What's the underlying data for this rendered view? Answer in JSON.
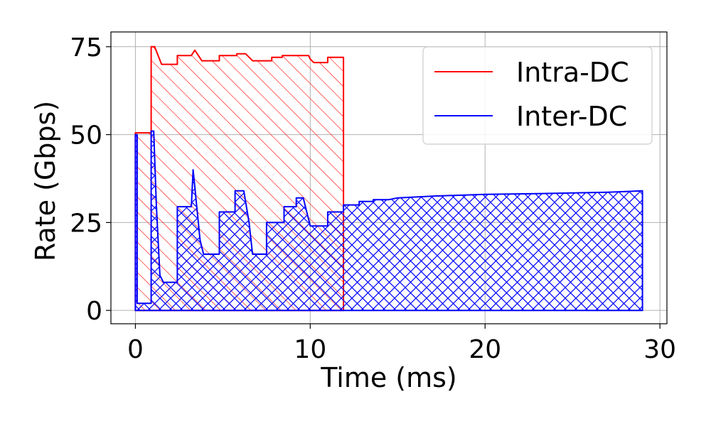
{
  "colors": {
    "intra": "#ff0000",
    "inter": "#0000ff",
    "grid": "#b0b0b0",
    "axis": "#000000"
  },
  "chart_data": {
    "type": "area",
    "xlabel": "Time (ms)",
    "ylabel": "Rate (Gbps)",
    "xlim": [
      -1.4,
      30.4
    ],
    "ylim": [
      -3.8,
      79.2
    ],
    "xticks": [
      0,
      10,
      20,
      30
    ],
    "yticks": [
      0,
      25,
      50,
      75
    ],
    "xtick_labels": [
      "0",
      "10",
      "20",
      "30"
    ],
    "ytick_labels": [
      "0",
      "25",
      "50",
      "75"
    ],
    "grid": true,
    "legend_position": "top-right",
    "series": [
      {
        "name": "Intra-DC",
        "color": "#ff0000",
        "hatch": "diagonal",
        "points": [
          [
            0.0,
            0
          ],
          [
            0.0,
            50.5
          ],
          [
            0.9,
            50.5
          ],
          [
            0.9,
            75
          ],
          [
            1.1,
            75
          ],
          [
            1.3,
            72.5
          ],
          [
            1.5,
            70
          ],
          [
            2.4,
            70
          ],
          [
            2.4,
            72.5
          ],
          [
            3.2,
            72.5
          ],
          [
            3.4,
            74
          ],
          [
            3.6,
            72.5
          ],
          [
            3.8,
            71
          ],
          [
            4.8,
            71
          ],
          [
            4.8,
            72.5
          ],
          [
            5.8,
            72.5
          ],
          [
            5.8,
            73
          ],
          [
            6.3,
            73
          ],
          [
            6.7,
            71
          ],
          [
            7.8,
            71
          ],
          [
            7.8,
            72
          ],
          [
            8.4,
            72
          ],
          [
            8.4,
            72.5
          ],
          [
            9.6,
            72.5
          ],
          [
            9.9,
            72.5
          ],
          [
            10.0,
            71.5
          ],
          [
            10.2,
            70.5
          ],
          [
            11.0,
            70.5
          ],
          [
            11.0,
            72
          ],
          [
            11.9,
            72
          ],
          [
            11.9,
            0
          ]
        ]
      },
      {
        "name": "Inter-DC",
        "color": "#0000ff",
        "hatch": "crosshatch",
        "points": [
          [
            0.0,
            0
          ],
          [
            0.0,
            50
          ],
          [
            0.1,
            50
          ],
          [
            0.1,
            2
          ],
          [
            0.9,
            2
          ],
          [
            0.9,
            51
          ],
          [
            1.05,
            51
          ],
          [
            1.2,
            30
          ],
          [
            1.4,
            10
          ],
          [
            1.6,
            8
          ],
          [
            2.4,
            8
          ],
          [
            2.4,
            29.5
          ],
          [
            3.2,
            29.5
          ],
          [
            3.3,
            40
          ],
          [
            3.5,
            30
          ],
          [
            3.7,
            20
          ],
          [
            3.9,
            16
          ],
          [
            4.8,
            16
          ],
          [
            4.8,
            28
          ],
          [
            5.7,
            28
          ],
          [
            5.7,
            34
          ],
          [
            6.2,
            34
          ],
          [
            6.5,
            25
          ],
          [
            6.7,
            16
          ],
          [
            7.5,
            16
          ],
          [
            7.5,
            25
          ],
          [
            8.5,
            25
          ],
          [
            8.5,
            29.5
          ],
          [
            9.2,
            29.5
          ],
          [
            9.2,
            32
          ],
          [
            9.6,
            32
          ],
          [
            9.9,
            26
          ],
          [
            10.0,
            24
          ],
          [
            11.0,
            24
          ],
          [
            11.0,
            28
          ],
          [
            11.9,
            28
          ],
          [
            11.9,
            30
          ],
          [
            12.8,
            30
          ],
          [
            12.8,
            31
          ],
          [
            13.6,
            31
          ],
          [
            13.6,
            31.5
          ],
          [
            14.5,
            31.5
          ],
          [
            15,
            32
          ],
          [
            17,
            32.5
          ],
          [
            20,
            33
          ],
          [
            24,
            33.3
          ],
          [
            27,
            33.6
          ],
          [
            29,
            34
          ],
          [
            29,
            0
          ]
        ]
      }
    ]
  }
}
